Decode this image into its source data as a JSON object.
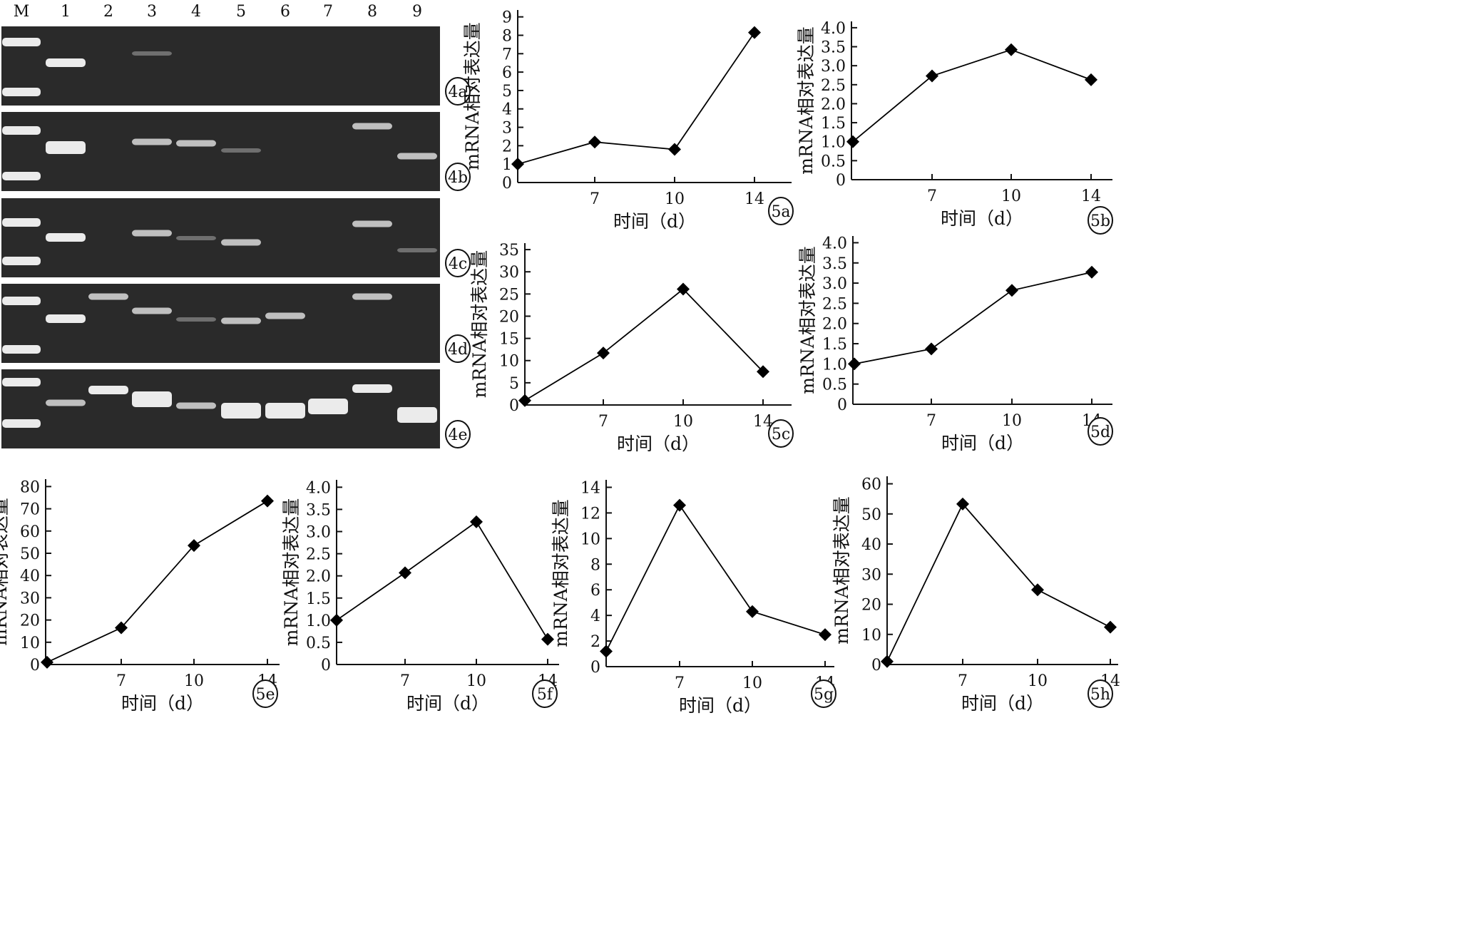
{
  "lane_labels": [
    "M",
    "1",
    "2",
    "3",
    "4",
    "5",
    "6",
    "7",
    "8",
    "9"
  ],
  "gel_panel_labels": [
    "4a",
    "4b",
    "4c",
    "4d",
    "4e"
  ],
  "gels": [
    {
      "id": "4a",
      "lanes": {
        "M": [
          "bright",
          "bright"
        ],
        "1": [
          "bright"
        ],
        "2": [],
        "3": [
          "faint"
        ],
        "4": [],
        "5": [],
        "6": [],
        "7": [],
        "8": [],
        "9": []
      }
    },
    {
      "id": "4b",
      "lanes": {
        "M": [
          "bright",
          "bright"
        ],
        "1": [
          "bright"
        ],
        "2": [],
        "3": [
          "medium"
        ],
        "4": [
          "medium"
        ],
        "5": [
          "faint"
        ],
        "6": [],
        "7": [],
        "8": [
          "medium"
        ],
        "9": [
          "medium"
        ]
      }
    },
    {
      "id": "4c",
      "lanes": {
        "M": [
          "bright",
          "bright"
        ],
        "1": [
          "bright"
        ],
        "2": [],
        "3": [
          "medium"
        ],
        "4": [
          "faint"
        ],
        "5": [
          "medium"
        ],
        "6": [],
        "7": [],
        "8": [
          "medium"
        ],
        "9": [
          "faint"
        ]
      }
    },
    {
      "id": "4d",
      "lanes": {
        "M": [
          "bright",
          "bright"
        ],
        "1": [
          "bright"
        ],
        "2": [
          "medium"
        ],
        "3": [
          "medium"
        ],
        "4": [
          "faint"
        ],
        "5": [
          "medium"
        ],
        "6": [
          "medium"
        ],
        "7": [],
        "8": [
          "medium"
        ],
        "9": []
      }
    },
    {
      "id": "4e",
      "lanes": {
        "M": [
          "bright",
          "bright"
        ],
        "1": [
          "medium"
        ],
        "2": [
          "bright"
        ],
        "3": [
          "bright"
        ],
        "4": [
          "medium"
        ],
        "5": [
          "bright"
        ],
        "6": [
          "bright"
        ],
        "7": [
          "bright"
        ],
        "8": [
          "bright"
        ],
        "9": [
          "bright"
        ]
      }
    }
  ],
  "colors": {
    "gel_background": "#2a2a2a",
    "band": "#f2f2f2",
    "line": "#000000",
    "marker": "#000000"
  },
  "chart_data": [
    {
      "id": "5a",
      "panel_label": "5a",
      "type": "line",
      "x": [
        0,
        7,
        10,
        14
      ],
      "xticks": [
        "7",
        "10",
        "14"
      ],
      "values": [
        1.0,
        2.2,
        1.8,
        8.15
      ],
      "ylim": [
        0,
        9
      ],
      "yticks": [
        "0",
        "1",
        "2",
        "3",
        "4",
        "5",
        "6",
        "7",
        "8",
        "9"
      ],
      "xlabel": "时间（d）",
      "ylabel": "mRNA相对表达量"
    },
    {
      "id": "5b",
      "panel_label": "5b",
      "type": "line",
      "x": [
        0,
        7,
        10,
        14
      ],
      "xticks": [
        "7",
        "10",
        "14"
      ],
      "values": [
        1.0,
        2.73,
        3.42,
        2.63
      ],
      "ylim": [
        0,
        4.0
      ],
      "yticks": [
        "0",
        "0.5",
        "1.0",
        "1.5",
        "2.0",
        "2.5",
        "3.0",
        "3.5",
        "4.0"
      ],
      "xlabel": "时间（d）",
      "ylabel": "mRNA相对表达量"
    },
    {
      "id": "5c",
      "panel_label": "5c",
      "type": "line",
      "x": [
        0,
        7,
        10,
        14
      ],
      "xticks": [
        "7",
        "10",
        "14"
      ],
      "values": [
        1.0,
        11.7,
        26.1,
        7.5
      ],
      "ylim": [
        0,
        35
      ],
      "yticks": [
        "0",
        "5",
        "10",
        "15",
        "20",
        "25",
        "30",
        "35"
      ],
      "xlabel": "时间（d）",
      "ylabel": "mRNA相对表达量"
    },
    {
      "id": "5d",
      "panel_label": "5d",
      "type": "line",
      "x": [
        0,
        7,
        10,
        14
      ],
      "xticks": [
        "7",
        "10",
        "14"
      ],
      "values": [
        1.0,
        1.37,
        2.82,
        3.27
      ],
      "ylim": [
        0,
        4.0
      ],
      "yticks": [
        "0",
        "0.5",
        "1.0",
        "1.5",
        "2.0",
        "2.5",
        "3.0",
        "3.5",
        "4.0"
      ],
      "xlabel": "时间（d）",
      "ylabel": "mRNA相对表达量"
    },
    {
      "id": "5e",
      "panel_label": "5e",
      "type": "line",
      "x": [
        0,
        7,
        10,
        14
      ],
      "xticks": [
        "7",
        "10",
        "14"
      ],
      "values": [
        1.0,
        16.5,
        53.5,
        73.5
      ],
      "ylim": [
        0,
        80
      ],
      "yticks": [
        "0",
        "10",
        "20",
        "30",
        "40",
        "50",
        "60",
        "70",
        "80"
      ],
      "xlabel": "时间（d）",
      "ylabel": "mRNA相对表达量"
    },
    {
      "id": "5f",
      "panel_label": "5f",
      "type": "line",
      "x": [
        0,
        7,
        10,
        14
      ],
      "xticks": [
        "7",
        "10",
        "14"
      ],
      "values": [
        1.0,
        2.07,
        3.22,
        0.57
      ],
      "ylim": [
        0,
        4.0
      ],
      "yticks": [
        "0",
        "0.5",
        "1.0",
        "1.5",
        "2.0",
        "2.5",
        "3.0",
        "3.5",
        "4.0"
      ],
      "xlabel": "时间（d）",
      "ylabel": "mRNA相对表达量"
    },
    {
      "id": "5g",
      "panel_label": "5g",
      "type": "line",
      "x": [
        0,
        7,
        10,
        14
      ],
      "xticks": [
        "7",
        "10",
        "14"
      ],
      "values": [
        1.2,
        12.6,
        4.3,
        2.5
      ],
      "ylim": [
        0,
        14
      ],
      "yticks": [
        "0",
        "2",
        "4",
        "6",
        "8",
        "10",
        "12",
        "14"
      ],
      "xlabel": "时间（d）",
      "ylabel": "mRNA相对表达量"
    },
    {
      "id": "5h",
      "panel_label": "5h",
      "type": "line",
      "x": [
        0,
        7,
        10,
        14
      ],
      "xticks": [
        "7",
        "10",
        "14"
      ],
      "values": [
        1.0,
        53.3,
        24.8,
        12.4
      ],
      "ylim": [
        0,
        60
      ],
      "yticks": [
        "0",
        "10",
        "20",
        "30",
        "40",
        "50",
        "60"
      ],
      "xlabel": "时间（d）",
      "ylabel": "mRNA相对表达量"
    }
  ]
}
